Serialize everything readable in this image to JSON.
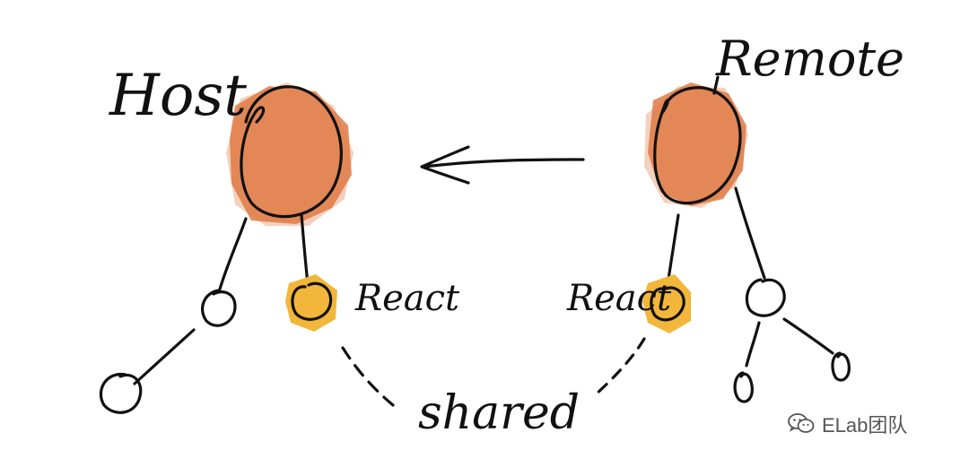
{
  "labels": {
    "host": "Host",
    "remote": "Remote",
    "host_dependency": "React",
    "remote_dependency": "React",
    "shared": "shared"
  },
  "watermark": {
    "text": "ELab团队",
    "icon": "wechat-icon"
  },
  "colors": {
    "ink": "#111111",
    "app_fill": "#E07A45",
    "shared_fill": "#F2B73A",
    "watermark": "#555555"
  }
}
